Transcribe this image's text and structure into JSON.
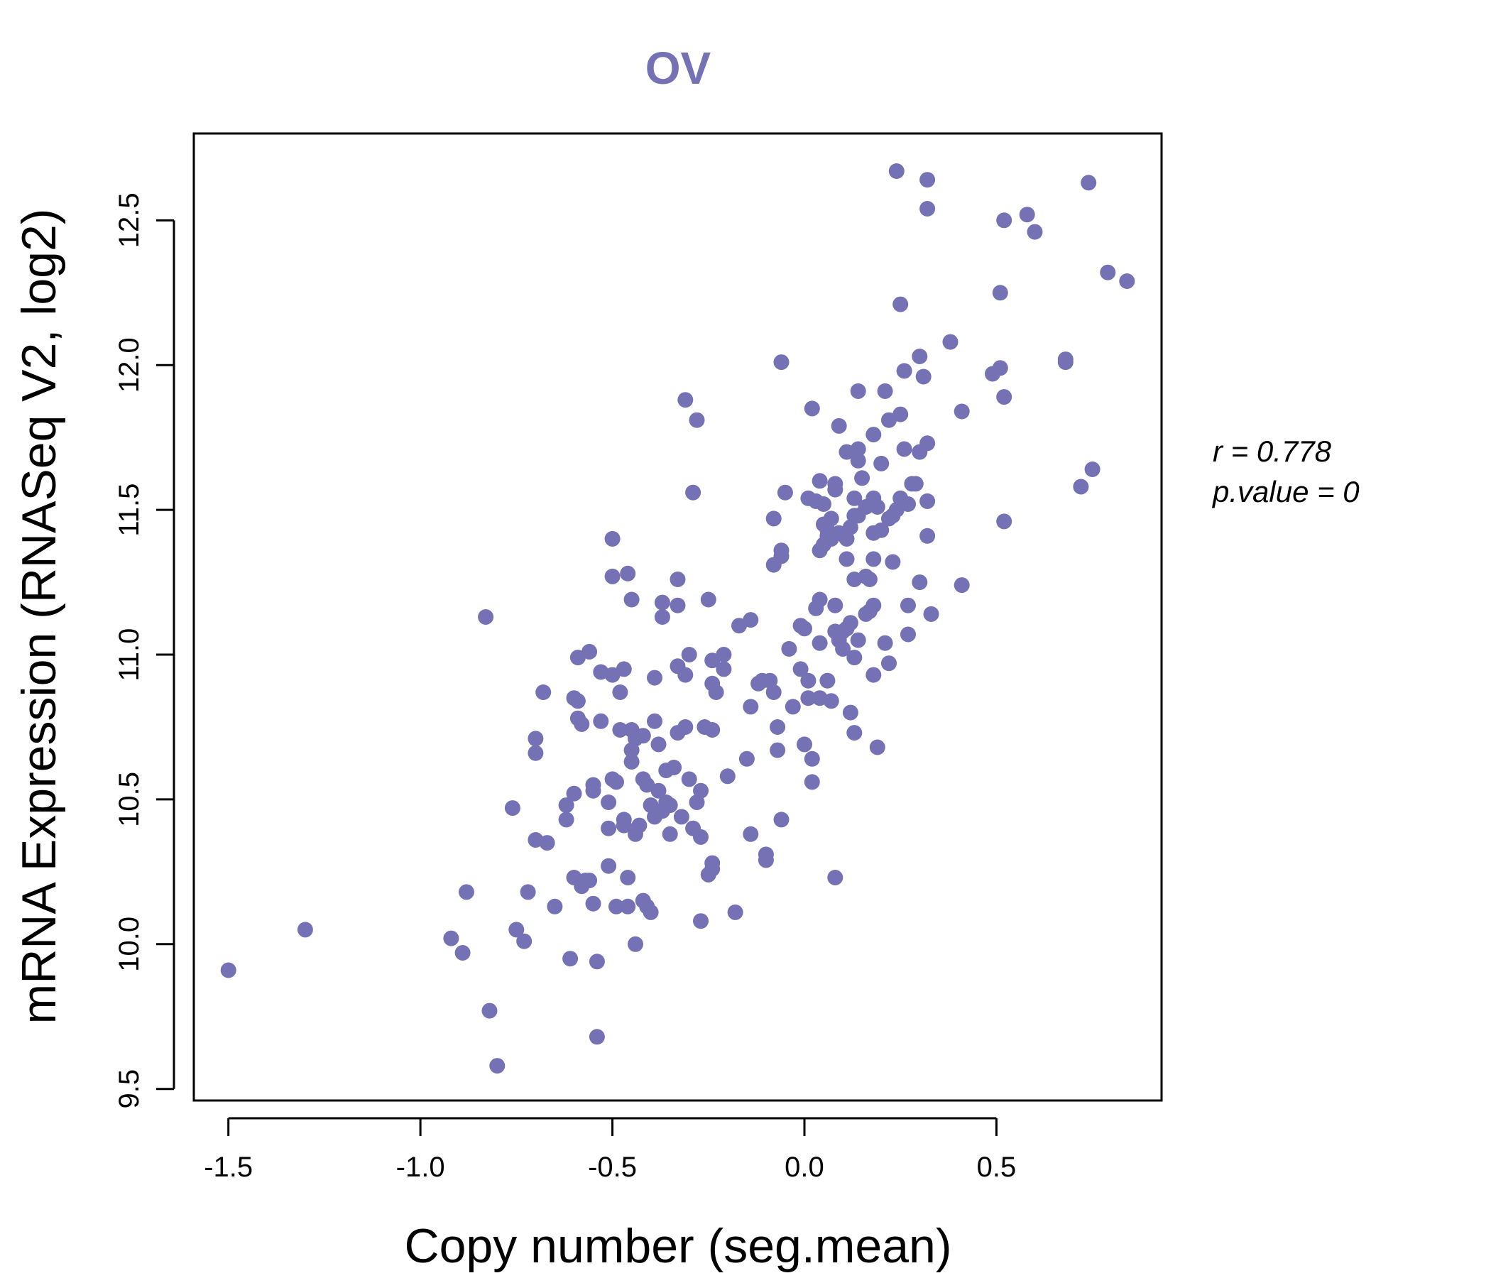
{
  "chart_data": {
    "type": "scatter",
    "title": "OV",
    "xlabel": "Copy number (seg.mean)",
    "ylabel": "mRNA Expression (RNASeq V2, log2)",
    "xlim": [
      -1.59,
      0.93
    ],
    "ylim": [
      9.46,
      12.8
    ],
    "xticks": [
      -1.5,
      -1.0,
      -0.5,
      0.0,
      0.5
    ],
    "xtick_labels": [
      "-1.5",
      "-1.0",
      "-0.5",
      "0.0",
      "0.5"
    ],
    "yticks": [
      9.5,
      10.0,
      10.5,
      11.0,
      11.5,
      12.0,
      12.5
    ],
    "ytick_labels": [
      "9.5",
      "10.0",
      "10.5",
      "11.0",
      "11.5",
      "12.0",
      "12.5"
    ],
    "grid": false,
    "point_color": "#7472b5",
    "annotations": {
      "r_line": "r = 0.778",
      "p_line": "p.value = 0"
    },
    "series": [
      {
        "points": [
          [
            -1.5,
            9.91
          ],
          [
            -1.3,
            10.05
          ],
          [
            -0.83,
            11.13
          ],
          [
            -0.92,
            10.02
          ],
          [
            -0.88,
            10.18
          ],
          [
            -0.89,
            9.97
          ],
          [
            -0.82,
            9.77
          ],
          [
            -0.8,
            9.58
          ],
          [
            -0.76,
            10.47
          ],
          [
            -0.75,
            10.05
          ],
          [
            -0.73,
            10.01
          ],
          [
            -0.72,
            10.18
          ],
          [
            -0.7,
            10.36
          ],
          [
            -0.7,
            10.71
          ],
          [
            -0.7,
            10.66
          ],
          [
            -0.68,
            10.87
          ],
          [
            -0.67,
            10.35
          ],
          [
            -0.65,
            10.13
          ],
          [
            -0.62,
            10.48
          ],
          [
            -0.62,
            10.43
          ],
          [
            -0.61,
            9.95
          ],
          [
            -0.6,
            10.52
          ],
          [
            -0.6,
            10.23
          ],
          [
            -0.6,
            10.85
          ],
          [
            -0.59,
            10.84
          ],
          [
            -0.59,
            10.78
          ],
          [
            -0.59,
            10.99
          ],
          [
            -0.58,
            10.2
          ],
          [
            -0.58,
            10.76
          ],
          [
            -0.57,
            10.22
          ],
          [
            -0.56,
            11.01
          ],
          [
            -0.56,
            10.22
          ],
          [
            -0.55,
            10.14
          ],
          [
            -0.55,
            10.55
          ],
          [
            -0.55,
            10.53
          ],
          [
            -0.54,
            9.94
          ],
          [
            -0.54,
            9.68
          ],
          [
            -0.53,
            10.94
          ],
          [
            -0.53,
            10.77
          ],
          [
            -0.51,
            10.49
          ],
          [
            -0.51,
            10.4
          ],
          [
            -0.51,
            10.27
          ],
          [
            -0.5,
            11.4
          ],
          [
            -0.5,
            11.27
          ],
          [
            -0.5,
            10.57
          ],
          [
            -0.5,
            10.93
          ],
          [
            -0.49,
            10.56
          ],
          [
            -0.49,
            10.13
          ],
          [
            -0.48,
            10.87
          ],
          [
            -0.48,
            10.74
          ],
          [
            -0.47,
            10.95
          ],
          [
            -0.47,
            10.43
          ],
          [
            -0.47,
            10.41
          ],
          [
            -0.46,
            10.13
          ],
          [
            -0.46,
            10.23
          ],
          [
            -0.46,
            11.28
          ],
          [
            -0.45,
            10.74
          ],
          [
            -0.45,
            10.63
          ],
          [
            -0.45,
            10.67
          ],
          [
            -0.45,
            11.19
          ],
          [
            -0.44,
            10.0
          ],
          [
            -0.44,
            10.38
          ],
          [
            -0.44,
            10.71
          ],
          [
            -0.43,
            10.41
          ],
          [
            -0.42,
            10.72
          ],
          [
            -0.42,
            10.57
          ],
          [
            -0.42,
            10.15
          ],
          [
            -0.41,
            10.13
          ],
          [
            -0.41,
            10.55
          ],
          [
            -0.4,
            10.48
          ],
          [
            -0.4,
            10.11
          ],
          [
            -0.39,
            10.92
          ],
          [
            -0.39,
            10.77
          ],
          [
            -0.39,
            10.44
          ],
          [
            -0.38,
            10.53
          ],
          [
            -0.38,
            10.69
          ],
          [
            -0.37,
            10.46
          ],
          [
            -0.37,
            11.18
          ],
          [
            -0.37,
            11.13
          ],
          [
            -0.36,
            10.6
          ],
          [
            -0.36,
            10.49
          ],
          [
            -0.35,
            10.38
          ],
          [
            -0.35,
            10.48
          ],
          [
            -0.34,
            10.61
          ],
          [
            -0.33,
            11.26
          ],
          [
            -0.33,
            11.17
          ],
          [
            -0.33,
            10.96
          ],
          [
            -0.33,
            10.73
          ],
          [
            -0.32,
            10.44
          ],
          [
            -0.31,
            11.88
          ],
          [
            -0.31,
            10.75
          ],
          [
            -0.31,
            10.93
          ],
          [
            -0.3,
            11.0
          ],
          [
            -0.3,
            10.57
          ],
          [
            -0.29,
            10.4
          ],
          [
            -0.29,
            11.56
          ],
          [
            -0.28,
            11.81
          ],
          [
            -0.28,
            10.49
          ],
          [
            -0.27,
            10.53
          ],
          [
            -0.27,
            10.37
          ],
          [
            -0.27,
            10.08
          ],
          [
            -0.26,
            10.75
          ],
          [
            -0.25,
            10.24
          ],
          [
            -0.25,
            11.19
          ],
          [
            -0.24,
            10.9
          ],
          [
            -0.24,
            10.98
          ],
          [
            -0.24,
            10.26
          ],
          [
            -0.24,
            10.28
          ],
          [
            -0.24,
            10.74
          ],
          [
            -0.23,
            10.87
          ],
          [
            -0.21,
            11.0
          ],
          [
            -0.21,
            10.95
          ],
          [
            -0.2,
            10.58
          ],
          [
            -0.18,
            10.11
          ],
          [
            -0.17,
            11.1
          ],
          [
            -0.15,
            10.64
          ],
          [
            -0.14,
            10.82
          ],
          [
            -0.14,
            10.38
          ],
          [
            -0.14,
            11.12
          ],
          [
            -0.12,
            10.9
          ],
          [
            -0.11,
            10.91
          ],
          [
            -0.1,
            10.31
          ],
          [
            -0.1,
            10.29
          ],
          [
            -0.09,
            10.91
          ],
          [
            -0.08,
            11.47
          ],
          [
            -0.08,
            11.31
          ],
          [
            -0.08,
            10.87
          ],
          [
            -0.07,
            10.67
          ],
          [
            -0.07,
            10.75
          ],
          [
            -0.06,
            12.01
          ],
          [
            -0.06,
            11.36
          ],
          [
            -0.06,
            11.34
          ],
          [
            -0.06,
            10.43
          ],
          [
            -0.05,
            11.56
          ],
          [
            -0.04,
            11.02
          ],
          [
            -0.03,
            10.82
          ],
          [
            -0.01,
            11.1
          ],
          [
            -0.01,
            10.95
          ],
          [
            0.0,
            11.09
          ],
          [
            0.0,
            10.69
          ],
          [
            0.01,
            10.85
          ],
          [
            0.01,
            11.54
          ],
          [
            0.01,
            10.91
          ],
          [
            0.02,
            11.85
          ],
          [
            0.02,
            10.64
          ],
          [
            0.02,
            10.56
          ],
          [
            0.03,
            11.53
          ],
          [
            0.03,
            11.16
          ],
          [
            0.04,
            11.6
          ],
          [
            0.04,
            11.36
          ],
          [
            0.04,
            11.19
          ],
          [
            0.04,
            11.04
          ],
          [
            0.04,
            10.85
          ],
          [
            0.05,
            11.52
          ],
          [
            0.05,
            11.38
          ],
          [
            0.05,
            11.45
          ],
          [
            0.06,
            11.43
          ],
          [
            0.06,
            11.41
          ],
          [
            0.06,
            10.91
          ],
          [
            0.07,
            11.47
          ],
          [
            0.07,
            11.4
          ],
          [
            0.07,
            10.84
          ],
          [
            0.08,
            11.57
          ],
          [
            0.08,
            11.59
          ],
          [
            0.08,
            11.17
          ],
          [
            0.08,
            11.08
          ],
          [
            0.08,
            10.23
          ],
          [
            0.09,
            11.79
          ],
          [
            0.09,
            11.42
          ],
          [
            0.09,
            11.05
          ],
          [
            0.1,
            11.02
          ],
          [
            0.1,
            11.08
          ],
          [
            0.11,
            11.7
          ],
          [
            0.11,
            11.4
          ],
          [
            0.11,
            11.33
          ],
          [
            0.11,
            11.09
          ],
          [
            0.12,
            11.44
          ],
          [
            0.12,
            11.11
          ],
          [
            0.12,
            10.8
          ],
          [
            0.13,
            11.48
          ],
          [
            0.13,
            11.54
          ],
          [
            0.13,
            11.26
          ],
          [
            0.13,
            10.99
          ],
          [
            0.13,
            10.73
          ],
          [
            0.14,
            11.91
          ],
          [
            0.14,
            11.71
          ],
          [
            0.14,
            11.67
          ],
          [
            0.14,
            11.48
          ],
          [
            0.14,
            11.05
          ],
          [
            0.15,
            11.61
          ],
          [
            0.16,
            11.51
          ],
          [
            0.16,
            11.27
          ],
          [
            0.16,
            11.14
          ],
          [
            0.17,
            11.26
          ],
          [
            0.17,
            11.15
          ],
          [
            0.18,
            11.76
          ],
          [
            0.18,
            11.54
          ],
          [
            0.18,
            11.42
          ],
          [
            0.18,
            11.33
          ],
          [
            0.18,
            11.17
          ],
          [
            0.18,
            10.93
          ],
          [
            0.19,
            11.51
          ],
          [
            0.19,
            10.68
          ],
          [
            0.2,
            11.66
          ],
          [
            0.2,
            11.43
          ],
          [
            0.21,
            11.91
          ],
          [
            0.21,
            11.04
          ],
          [
            0.22,
            11.81
          ],
          [
            0.22,
            11.47
          ],
          [
            0.22,
            10.97
          ],
          [
            0.23,
            11.32
          ],
          [
            0.23,
            11.48
          ],
          [
            0.24,
            12.67
          ],
          [
            0.24,
            11.5
          ],
          [
            0.25,
            12.21
          ],
          [
            0.25,
            11.83
          ],
          [
            0.25,
            11.54
          ],
          [
            0.26,
            11.71
          ],
          [
            0.26,
            11.98
          ],
          [
            0.27,
            11.52
          ],
          [
            0.27,
            11.17
          ],
          [
            0.27,
            11.07
          ],
          [
            0.28,
            11.59
          ],
          [
            0.29,
            11.59
          ],
          [
            0.3,
            12.03
          ],
          [
            0.3,
            11.25
          ],
          [
            0.3,
            11.7
          ],
          [
            0.31,
            11.96
          ],
          [
            0.32,
            12.64
          ],
          [
            0.32,
            12.54
          ],
          [
            0.32,
            11.73
          ],
          [
            0.32,
            11.53
          ],
          [
            0.32,
            11.41
          ],
          [
            0.33,
            11.14
          ],
          [
            0.38,
            12.08
          ],
          [
            0.41,
            11.84
          ],
          [
            0.41,
            11.24
          ],
          [
            0.49,
            11.97
          ],
          [
            0.51,
            12.25
          ],
          [
            0.51,
            11.99
          ],
          [
            0.52,
            11.89
          ],
          [
            0.52,
            11.46
          ],
          [
            0.52,
            12.5
          ],
          [
            0.58,
            12.52
          ],
          [
            0.6,
            12.46
          ],
          [
            0.68,
            12.02
          ],
          [
            0.68,
            12.01
          ],
          [
            0.72,
            11.58
          ],
          [
            0.74,
            12.63
          ],
          [
            0.75,
            11.64
          ],
          [
            0.79,
            12.32
          ],
          [
            0.84,
            12.29
          ]
        ]
      }
    ]
  }
}
